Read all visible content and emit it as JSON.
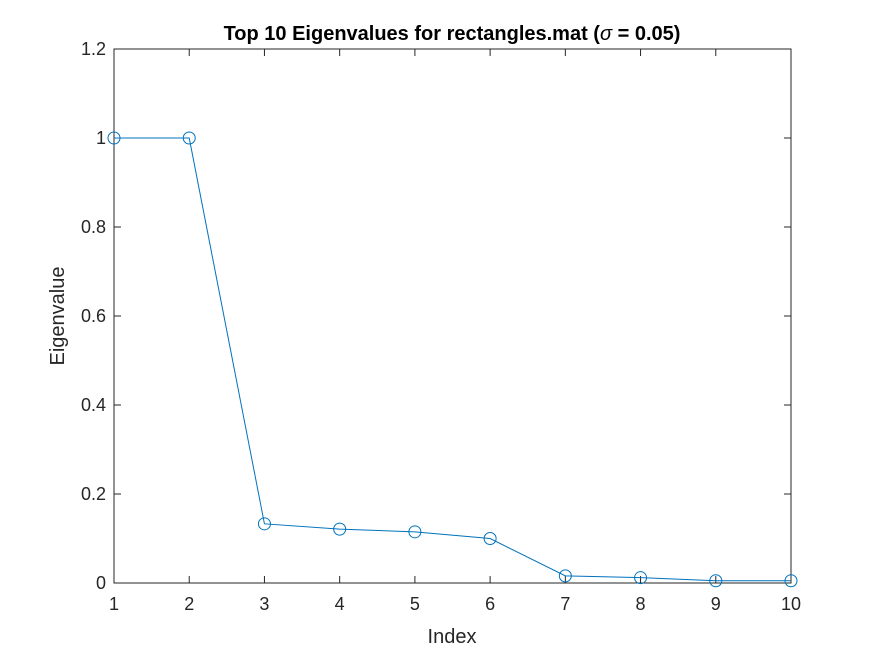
{
  "chart_data": {
    "type": "line",
    "title_prefix": "Top 10 Eigenvalues for rectangles.mat (",
    "title_symbol": "σ",
    "title_suffix": " = 0.05)",
    "xlabel": "Index",
    "ylabel": "Eigenvalue",
    "xlim": [
      1,
      10
    ],
    "ylim": [
      0,
      1.2
    ],
    "xticks": [
      1,
      2,
      3,
      4,
      5,
      6,
      7,
      8,
      9,
      10
    ],
    "yticks": [
      0,
      0.2,
      0.4,
      0.6,
      0.8,
      1,
      1.2
    ],
    "xtick_labels": [
      "1",
      "2",
      "3",
      "4",
      "5",
      "6",
      "7",
      "8",
      "9",
      "10"
    ],
    "ytick_labels": [
      "0",
      "0.2",
      "0.4",
      "0.6",
      "0.8",
      "1",
      "1.2"
    ],
    "grid": false,
    "marker": "circle",
    "series": [
      {
        "x": [
          1,
          2,
          3,
          4,
          5,
          6,
          7,
          8,
          9,
          10
        ],
        "values": [
          1.0,
          1.0,
          0.133,
          0.121,
          0.115,
          0.1,
          0.016,
          0.012,
          0.005,
          0.005
        ],
        "color": "#0072BD"
      }
    ]
  }
}
